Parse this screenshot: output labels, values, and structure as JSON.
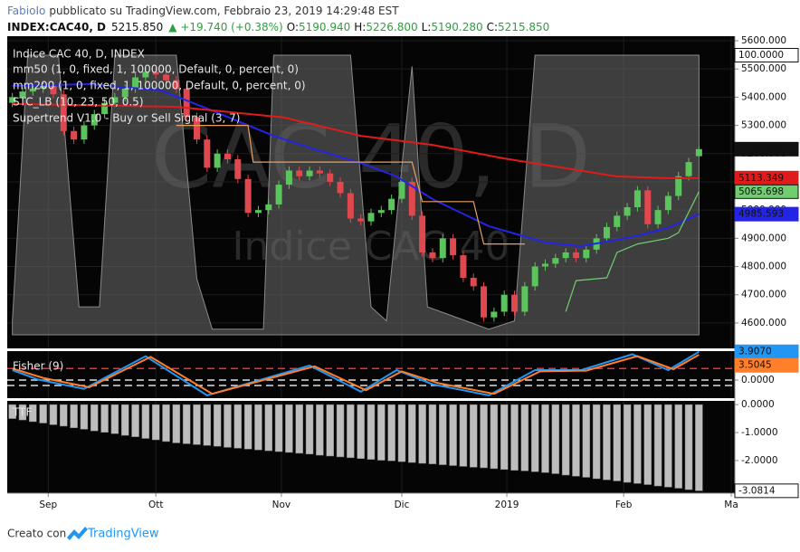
{
  "header": {
    "author": "FabioIo",
    "published": "pubblicato su TradingView.com, Febbraio 23, 2019 14:29:48 EST",
    "symbol": "INDEX:CAC40, D",
    "price": "5215.850",
    "change": "▲ +19.740 (+0.38%)",
    "open_label": "O:",
    "open": "5190.940",
    "high_label": "H:",
    "high": "5226.800",
    "low_label": "L:",
    "low": "5190.280",
    "close_label": "C:",
    "close": "5215.850"
  },
  "footer": {
    "text": "Creato con",
    "brand": "TradingView"
  },
  "chart_data": [
    {
      "type": "candlestick",
      "name": "Indice CAC 40, D, INDEX",
      "watermark": "CAC 40, D",
      "watermark_subtitle": "Indice CAC 40",
      "up_color": "#5cc45c",
      "down_color": "#e0484f",
      "x": [
        0,
        2,
        4,
        6,
        8,
        10,
        12,
        14,
        16,
        18,
        20,
        22,
        24,
        26,
        28,
        30,
        32,
        34,
        36,
        38,
        40,
        42,
        44,
        46,
        48,
        50,
        52,
        54,
        56,
        58,
        60,
        62,
        64,
        66,
        68,
        70,
        72,
        74,
        76,
        78,
        80,
        82,
        84,
        86,
        88,
        90,
        92,
        94,
        96,
        98,
        100,
        102,
        104,
        106,
        108,
        110,
        112,
        114,
        116,
        118,
        120,
        122,
        124,
        126,
        128,
        130,
        132,
        134
      ],
      "open": [
        5380,
        5400,
        5420,
        5430,
        5440,
        5410,
        5280,
        5250,
        5300,
        5340,
        5380,
        5400,
        5430,
        5470,
        5490,
        5480,
        5460,
        5430,
        5330,
        5250,
        5150,
        5200,
        5180,
        5110,
        4990,
        5000,
        5020,
        5090,
        5140,
        5120,
        5140,
        5130,
        5100,
        5060,
        4970,
        4960,
        4990,
        5000,
        5040,
        5100,
        4980,
        4850,
        4830,
        4900,
        4840,
        4760,
        4730,
        4620,
        4640,
        4700,
        4640,
        4730,
        4800,
        4810,
        4830,
        4850,
        4830,
        4860,
        4900,
        4940,
        4980,
        5010,
        5070,
        4950,
        5000,
        5050,
        5120,
        5190.94
      ],
      "high": [
        5415,
        5435,
        5445,
        5455,
        5455,
        5425,
        5295,
        5315,
        5355,
        5395,
        5415,
        5445,
        5485,
        5505,
        5505,
        5495,
        5475,
        5445,
        5345,
        5265,
        5215,
        5215,
        5195,
        5125,
        5015,
        5035,
        5105,
        5155,
        5155,
        5155,
        5155,
        5145,
        5115,
        5075,
        4985,
        5005,
        5015,
        5055,
        5115,
        5115,
        4995,
        4865,
        4915,
        4915,
        4855,
        4775,
        4745,
        4655,
        4715,
        4715,
        4745,
        4815,
        4825,
        4845,
        4865,
        4865,
        4875,
        4915,
        4955,
        4995,
        5025,
        5085,
        5085,
        5015,
        5065,
        5135,
        5185,
        5226.8
      ],
      "low": [
        5365,
        5385,
        5405,
        5415,
        5395,
        5265,
        5235,
        5235,
        5285,
        5325,
        5365,
        5385,
        5415,
        5455,
        5465,
        5445,
        5415,
        5315,
        5235,
        5135,
        5135,
        5165,
        5095,
        4975,
        4975,
        4985,
        5005,
        5075,
        5105,
        5105,
        5115,
        5085,
        5045,
        4955,
        4945,
        4945,
        4975,
        4985,
        5025,
        4965,
        4835,
        4815,
        4815,
        4825,
        4745,
        4715,
        4605,
        4605,
        4625,
        4625,
        4625,
        4715,
        4785,
        4795,
        4815,
        4815,
        4815,
        4845,
        4885,
        4925,
        4965,
        4995,
        4935,
        4935,
        4985,
        5035,
        5105,
        5190.28
      ],
      "close": [
        5400,
        5420,
        5430,
        5440,
        5410,
        5280,
        5250,
        5300,
        5340,
        5380,
        5400,
        5430,
        5470,
        5490,
        5480,
        5460,
        5430,
        5330,
        5250,
        5150,
        5200,
        5180,
        5110,
        4990,
        5000,
        5020,
        5090,
        5140,
        5120,
        5140,
        5130,
        5100,
        5060,
        4970,
        4960,
        4990,
        5000,
        5040,
        5100,
        4980,
        4850,
        4830,
        4900,
        4840,
        4760,
        4730,
        4620,
        4640,
        4700,
        4640,
        4730,
        4800,
        4810,
        4830,
        4850,
        4830,
        4860,
        4900,
        4940,
        4980,
        5010,
        5070,
        4950,
        5000,
        5050,
        5120,
        5170,
        5215.85
      ],
      "last_value_label": "5215.850",
      "xlim": [
        -1,
        141
      ],
      "xticks": [
        {
          "value": 7,
          "label": "Sep"
        },
        {
          "value": 28,
          "label": "Ott"
        },
        {
          "value": 52.5,
          "label": "Nov"
        },
        {
          "value": 76,
          "label": "Dic"
        },
        {
          "value": 96.5,
          "label": "2019"
        },
        {
          "value": 119.3,
          "label": "Feb"
        },
        {
          "value": 140.3,
          "label": "Ma"
        }
      ],
      "ylim": [
        4510,
        5616
      ],
      "yticks": [
        {
          "value": 4600,
          "label": "4600.000"
        },
        {
          "value": 4700,
          "label": "4700.000"
        },
        {
          "value": 4800,
          "label": "4800.000"
        },
        {
          "value": 4900,
          "label": "4900.000"
        },
        {
          "value": 5000,
          "label": "5000.000"
        },
        {
          "value": 5100,
          "label": "5100.000"
        },
        {
          "value": 5200,
          "label": "5200.000"
        },
        {
          "value": 5300,
          "label": "5300.000"
        },
        {
          "value": 5400,
          "label": "5400.000"
        },
        {
          "value": 5500,
          "label": "5500.000"
        },
        {
          "value": 5600,
          "label": "5600.000"
        }
      ],
      "grid": true,
      "overlays": [
        {
          "name": "mm50 (1, 0, fixed, 1, 100000, Default, 0, percent, 0)",
          "style": "line",
          "color": "#2424e6",
          "x": [
            0,
            15,
            29,
            38,
            51,
            59,
            68,
            75,
            82,
            93,
            104,
            111,
            121,
            128,
            134
          ],
          "values": [
            5440,
            5446,
            5424,
            5360,
            5263,
            5215,
            5167,
            5119,
            5039,
            4943,
            4885,
            4872,
            4905,
            4937,
            4985.593
          ],
          "last_value_label": "4985.593"
        },
        {
          "name": "mm200 (1, 0, fixed, 1, 100000, Default, 0, percent, 0)",
          "style": "line",
          "color": "#e01b1b",
          "x": [
            0,
            32,
            44,
            53,
            68,
            82,
            96,
            107,
            118,
            128,
            134
          ],
          "values": [
            5376,
            5366,
            5344,
            5328,
            5263,
            5231,
            5183,
            5151,
            5119,
            5113,
            5113.349
          ],
          "last_value_label": "5113.349"
        },
        {
          "name": "STC_LB (10, 23, 50, 0.5)",
          "style": "area",
          "color": "#6e6e6e",
          "ylim": [
            -4.85,
            106.8
          ],
          "x": [
            0,
            3,
            9,
            13,
            17,
            20,
            32,
            36,
            39,
            49,
            51,
            66,
            70,
            73,
            76,
            78,
            81,
            93,
            98,
            102,
            134
          ],
          "values": [
            5,
            100,
            100,
            10,
            10,
            100,
            100,
            20,
            2,
            2,
            100,
            100,
            10,
            5,
            60,
            96,
            10,
            2,
            5,
            100,
            100
          ],
          "last_value_label": "100.0000"
        },
        {
          "name": "Supertrend V1.0 - Buy or Sell Signal (3, 7)",
          "style": "segments",
          "segments": [
            {
              "color": "#e8a060",
              "x": [
                32,
                46,
                47,
                78,
                80,
                90,
                92,
                100
              ],
              "values": [
                5300,
                5300,
                5170,
                5170,
                5030,
                5030,
                4880,
                4880
              ]
            },
            {
              "color": "#6fcf6f",
              "x": [
                108,
                110,
                116,
                118,
                122,
                128,
                130,
                134
              ],
              "values": [
                4640,
                4750,
                4760,
                4850,
                4880,
                4900,
                4920,
                5065.698
              ]
            }
          ],
          "last_value_label": "5065.698"
        }
      ]
    },
    {
      "type": "line",
      "name": "Fisher (9)",
      "xlim": [
        -1,
        141
      ],
      "ylim": [
        -2.5,
        4.0
      ],
      "yticks": [
        {
          "value": 0,
          "label": "0.0000"
        }
      ],
      "levels": [
        {
          "value": 1.6,
          "color": "#ff2a2a"
        },
        {
          "value": 0,
          "color": "#dddddd"
        },
        {
          "value": -0.75,
          "color": "#dddddd"
        }
      ],
      "series": [
        {
          "color": "#2196f3",
          "x": [
            0,
            5,
            14,
            26,
            38,
            58,
            68,
            75,
            82,
            93,
            102,
            111,
            121,
            128,
            134
          ],
          "values": [
            1.37,
            0.08,
            -1.21,
            3.3,
            -2.11,
            2.01,
            -1.6,
            1.37,
            -0.57,
            -2.11,
            1.37,
            1.37,
            3.56,
            1.37,
            3.907
          ],
          "last_value_label": "3.9070"
        },
        {
          "color": "#ff7f2a",
          "x": [
            0,
            6,
            15,
            27,
            39,
            59,
            69,
            76,
            83,
            94,
            103,
            112,
            122,
            129,
            134
          ],
          "values": [
            1.6,
            0.3,
            -1.0,
            3.2,
            -1.9,
            1.9,
            -1.4,
            1.2,
            -0.4,
            -1.9,
            1.2,
            1.3,
            3.3,
            1.5,
            3.5045
          ],
          "last_value_label": "3.5045"
        }
      ]
    },
    {
      "type": "bar",
      "name": "TTF",
      "color": "#bdbdbd",
      "xlim": [
        -1,
        141
      ],
      "x": [
        0,
        2,
        4,
        6,
        8,
        10,
        12,
        14,
        16,
        18,
        20,
        22,
        24,
        26,
        28,
        30,
        32,
        34,
        36,
        38,
        40,
        42,
        44,
        46,
        48,
        50,
        52,
        54,
        56,
        58,
        60,
        62,
        64,
        66,
        68,
        70,
        72,
        74,
        76,
        78,
        80,
        82,
        84,
        86,
        88,
        90,
        92,
        94,
        96,
        98,
        100,
        102,
        104,
        106,
        108,
        110,
        112,
        114,
        116,
        118,
        120,
        122,
        124,
        126,
        128,
        130,
        132,
        134
      ],
      "values": [
        -0.5,
        -0.55,
        -0.61,
        -0.66,
        -0.72,
        -0.77,
        -0.83,
        -0.88,
        -0.94,
        -0.99,
        -1.04,
        -1.1,
        -1.15,
        -1.21,
        -1.26,
        -1.32,
        -1.37,
        -1.4,
        -1.43,
        -1.46,
        -1.49,
        -1.53,
        -1.56,
        -1.59,
        -1.62,
        -1.65,
        -1.68,
        -1.71,
        -1.74,
        -1.77,
        -1.81,
        -1.84,
        -1.87,
        -1.9,
        -1.93,
        -1.96,
        -1.99,
        -2.01,
        -2.04,
        -2.07,
        -2.1,
        -2.12,
        -2.15,
        -2.18,
        -2.21,
        -2.24,
        -2.26,
        -2.29,
        -2.32,
        -2.35,
        -2.37,
        -2.4,
        -2.43,
        -2.47,
        -2.52,
        -2.56,
        -2.6,
        -2.65,
        -2.69,
        -2.73,
        -2.78,
        -2.82,
        -2.86,
        -2.91,
        -2.95,
        -2.99,
        -3.04,
        -3.0814
      ],
      "last_value_label": "-3.0814",
      "ylim": [
        -3.167,
        0.133
      ],
      "yticks": [
        {
          "value": 0,
          "label": "0.0000"
        },
        {
          "value": -1,
          "label": "-1.0000"
        },
        {
          "value": -2,
          "label": "-2.0000"
        }
      ]
    }
  ]
}
